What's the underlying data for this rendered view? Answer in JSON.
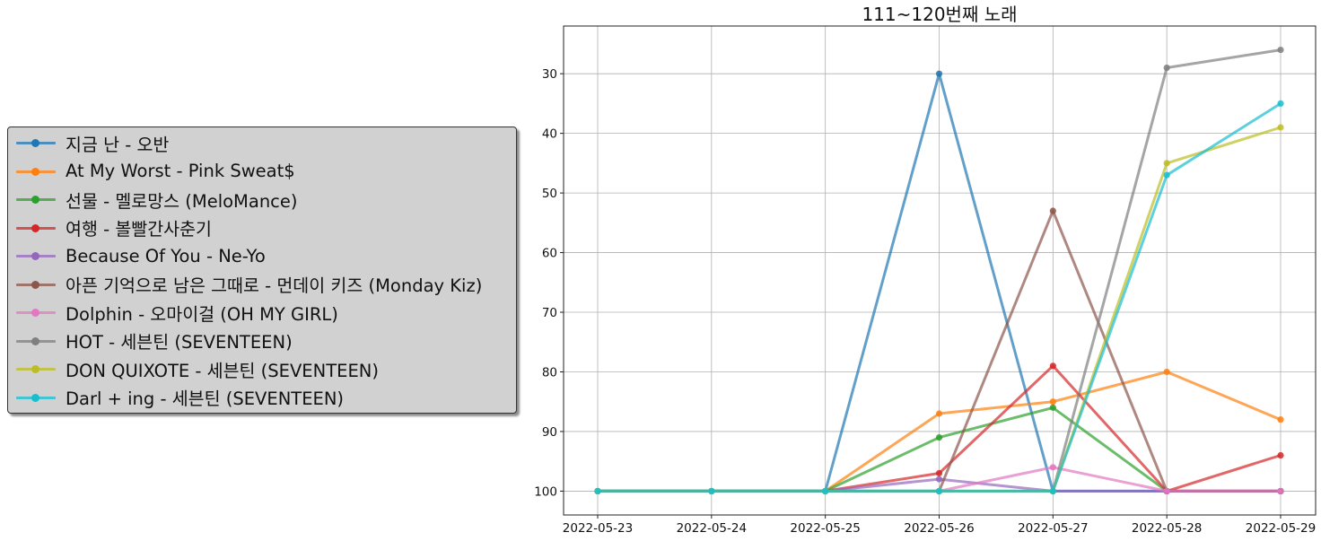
{
  "chart_data": {
    "type": "line",
    "title": "111~120번째 노래",
    "xlabel": "",
    "ylabel": "",
    "y_inverted": true,
    "ylim": [
      104,
      22
    ],
    "yticks": [
      30,
      40,
      50,
      60,
      70,
      80,
      90,
      100
    ],
    "grid": true,
    "legend_position": "left",
    "categories": [
      "2022-05-23",
      "2022-05-24",
      "2022-05-25",
      "2022-05-26",
      "2022-05-27",
      "2022-05-28",
      "2022-05-29"
    ],
    "series": [
      {
        "name": "지금 난 - 오반",
        "color": "#1f77b4",
        "values": [
          100,
          100,
          100,
          30,
          100,
          100,
          100
        ]
      },
      {
        "name": "At My Worst - Pink Sweat$",
        "color": "#ff7f0e",
        "values": [
          100,
          100,
          100,
          87,
          85,
          80,
          88
        ]
      },
      {
        "name": "선물 - 멜로망스 (MeloMance)",
        "color": "#2ca02c",
        "values": [
          100,
          100,
          100,
          91,
          86,
          100,
          100
        ]
      },
      {
        "name": "여행 - 볼빨간사춘기",
        "color": "#d62728",
        "values": [
          100,
          100,
          100,
          97,
          79,
          100,
          94
        ]
      },
      {
        "name": "Because Of You - Ne-Yo",
        "color": "#9467bd",
        "values": [
          100,
          100,
          100,
          98,
          100,
          100,
          100
        ]
      },
      {
        "name": "아픈 기억으로 남은 그때로 - 먼데이 키즈 (Monday Kiz)",
        "color": "#8c564b",
        "values": [
          100,
          100,
          100,
          100,
          53,
          100,
          100
        ]
      },
      {
        "name": "Dolphin - 오마이걸 (OH MY GIRL)",
        "color": "#e377c2",
        "values": [
          100,
          100,
          100,
          100,
          96,
          100,
          100
        ]
      },
      {
        "name": "HOT - 세븐틴 (SEVENTEEN)",
        "color": "#7f7f7f",
        "values": [
          100,
          100,
          100,
          100,
          100,
          29,
          26
        ]
      },
      {
        "name": "DON QUIXOTE - 세븐틴 (SEVENTEEN)",
        "color": "#bcbd22",
        "values": [
          100,
          100,
          100,
          100,
          100,
          45,
          39
        ]
      },
      {
        "name": "Darl + ing - 세븐틴 (SEVENTEEN)",
        "color": "#17becf",
        "values": [
          100,
          100,
          100,
          100,
          100,
          47,
          35
        ]
      }
    ]
  }
}
